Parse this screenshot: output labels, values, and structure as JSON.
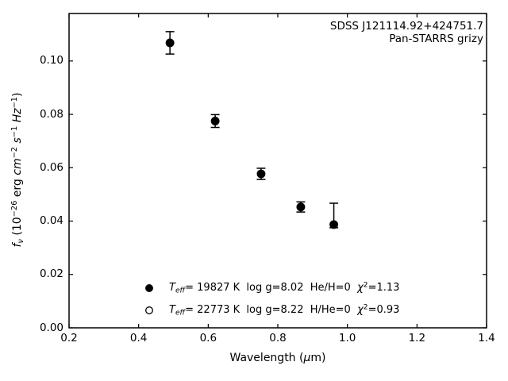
{
  "figure": {
    "annotation": {
      "line1": "SDSS J121114.92+424751.7",
      "line2": "Pan-STARRS grizy"
    }
  },
  "chart_data": {
    "type": "scatter",
    "title": "",
    "xlabel_text": "Wavelength (um)",
    "xlabel_html": "Wavelength (<i>μ</i>m)",
    "ylabel_text": "f_nu (10^-26 erg cm^-2 s^-1 Hz^-1)",
    "ylabel_html": "<i>f</i><sub><i>ν</i></sub> (10<sup>−26</sup> erg <i>cm</i><sup>−2</sup> <i>s</i><sup>−1</sup> <i>Hz</i><sup>−1</sup>)",
    "xlim": [
      0.2,
      1.4
    ],
    "ylim": [
      0.0,
      0.1178
    ],
    "x_ticks": [
      0.2,
      0.4,
      0.6,
      0.8,
      1.0,
      1.2,
      1.4
    ],
    "x_tick_labels": [
      "0.2",
      "0.4",
      "0.6",
      "0.8",
      "1.0",
      "1.2",
      "1.4"
    ],
    "y_ticks": [
      0.0,
      0.02,
      0.04,
      0.06,
      0.08,
      0.1
    ],
    "y_tick_labels": [
      "0.00",
      "0.02",
      "0.04",
      "0.06",
      "0.08",
      "0.10"
    ],
    "grid": false,
    "tick_direction": "in",
    "ticks_all_sides": true,
    "axis_color": "#000000",
    "series": [
      {
        "name": "pan-starrs-grizy-photometry",
        "marker": "filled-circle",
        "color": "#000000",
        "points": [
          {
            "x": 0.49,
            "y": 0.1068,
            "err_plus": 0.0042,
            "err_minus": 0.0042
          },
          {
            "x": 0.62,
            "y": 0.0775,
            "err_plus": 0.0024,
            "err_minus": 0.0024
          },
          {
            "x": 0.752,
            "y": 0.0577,
            "err_plus": 0.0021,
            "err_minus": 0.0021
          },
          {
            "x": 0.866,
            "y": 0.0453,
            "err_plus": 0.0019,
            "err_minus": 0.0019
          },
          {
            "x": 0.961,
            "y": 0.0387,
            "err_plus": 0.008,
            "err_minus": 0.0012
          }
        ]
      }
    ],
    "legend": {
      "position": "lower-left-inside",
      "frame": false,
      "entries": [
        {
          "marker": "filled-circle",
          "label_text": "T_eff= 19827 K  log g=8.02  He/H=0  chi^2=1.13",
          "label_html": "<i>T</i><sub><i>eff</i></sub>= 19827 K&nbsp; log g=8.02&nbsp; He/H=0&nbsp; <i>χ</i><sup>2</sup>=1.13"
        },
        {
          "marker": "open-circle",
          "label_text": "T_eff= 22773 K  log g=8.22  H/He=0  chi^2=0.93",
          "label_html": "<i>T</i><sub><i>eff</i></sub>= 22773 K&nbsp; log g=8.22&nbsp; H/He=0&nbsp; <i>χ</i><sup>2</sup>=0.93"
        }
      ]
    }
  }
}
